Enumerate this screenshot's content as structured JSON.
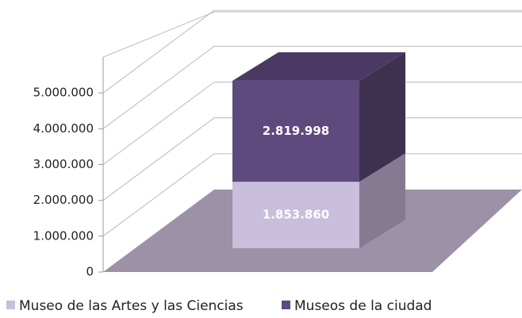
{
  "chart_data": {
    "type": "bar3d_stacked",
    "categories": [
      null
    ],
    "series": [
      {
        "name": "Museo de las Artes y las Ciencias",
        "color": "#c9bedb",
        "values": [
          1853860
        ],
        "value_labels": [
          "1.853.860"
        ]
      },
      {
        "name": "Museos de la ciudad",
        "color": "#5e4a7d",
        "values": [
          2819998
        ],
        "value_labels": [
          "2.819.998"
        ]
      }
    ],
    "ylim": [
      0,
      6000000
    ],
    "yticks": [
      0,
      {
        "value": 1000000,
        "label": "1.000.000"
      },
      {
        "value": 2000000,
        "label": "2.000.000"
      },
      {
        "value": 3000000,
        "label": "3.000.000"
      },
      {
        "value": 4000000,
        "label": "4.000.000"
      },
      {
        "value": 5000000,
        "label": "5.000.000"
      }
    ],
    "grid": true,
    "legend": "bottom"
  }
}
